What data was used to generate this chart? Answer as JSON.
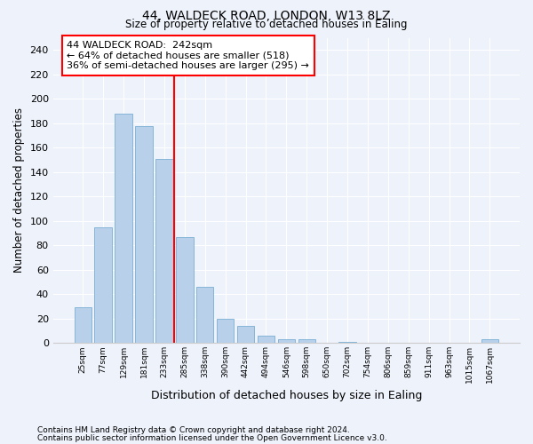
{
  "title1": "44, WALDECK ROAD, LONDON, W13 8LZ",
  "title2": "Size of property relative to detached houses in Ealing",
  "xlabel": "Distribution of detached houses by size in Ealing",
  "ylabel": "Number of detached properties",
  "categories": [
    "25sqm",
    "77sqm",
    "129sqm",
    "181sqm",
    "233sqm",
    "285sqm",
    "338sqm",
    "390sqm",
    "442sqm",
    "494sqm",
    "546sqm",
    "598sqm",
    "650sqm",
    "702sqm",
    "754sqm",
    "806sqm",
    "859sqm",
    "911sqm",
    "963sqm",
    "1015sqm",
    "1067sqm"
  ],
  "values": [
    29,
    95,
    188,
    178,
    151,
    87,
    46,
    20,
    14,
    6,
    3,
    3,
    0,
    1,
    0,
    0,
    0,
    0,
    0,
    0,
    3
  ],
  "bar_color": "#b8d0ea",
  "bar_edge_color": "#7aaed4",
  "vline_index": 4,
  "vline_color": "red",
  "annotation_text": "44 WALDECK ROAD:  242sqm\n← 64% of detached houses are smaller (518)\n36% of semi-detached houses are larger (295) →",
  "annotation_box_color": "white",
  "annotation_box_edge": "red",
  "ylim": [
    0,
    250
  ],
  "yticks": [
    0,
    20,
    40,
    60,
    80,
    100,
    120,
    140,
    160,
    180,
    200,
    220,
    240
  ],
  "footer1": "Contains HM Land Registry data © Crown copyright and database right 2024.",
  "footer2": "Contains public sector information licensed under the Open Government Licence v3.0.",
  "background_color": "#eef2fb"
}
